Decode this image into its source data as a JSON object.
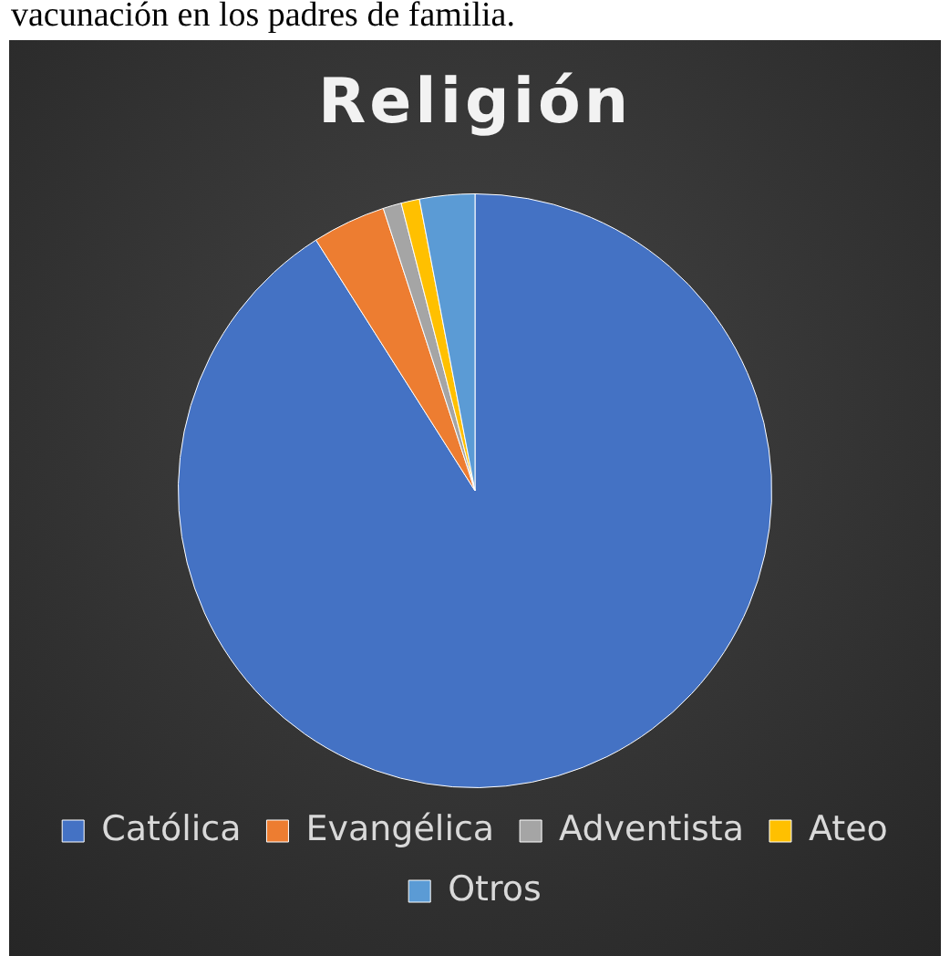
{
  "chart_data": {
    "type": "pie",
    "title": "Religión",
    "annotations": [
      "vacunación en los padres de familia."
    ],
    "categories": [
      "Católica",
      "Evangélica",
      "Adventista",
      "Ateo",
      "Otros"
    ],
    "values": [
      91,
      4,
      1,
      1,
      3
    ],
    "colors": [
      "#4472c4",
      "#ed7d31",
      "#a5a5a5",
      "#ffc000",
      "#5b9bd5"
    ],
    "legend": "bottom"
  }
}
